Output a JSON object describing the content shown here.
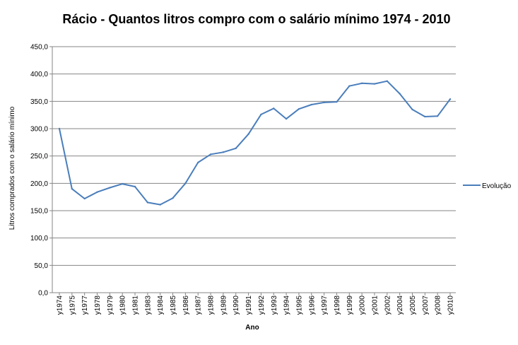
{
  "chart_data": {
    "type": "line",
    "title": "Rácio - Quantos litros compro com o salário mínimo 1974 - 2010",
    "xlabel": "Ano",
    "ylabel": "Litros comprados com o salário mínimo",
    "ylim": [
      0,
      450
    ],
    "y_ticks": [
      "0,0",
      "50,0",
      "100,0",
      "150,0",
      "200,0",
      "250,0",
      "300,0",
      "350,0",
      "400,0",
      "450,0"
    ],
    "grid": "horizontal",
    "legend_position": "right",
    "line_color": "#4a7ebb",
    "categories": [
      "y1974",
      "y1975",
      "y1977",
      "y1978",
      "y1979",
      "y1980",
      "y1981",
      "y1983",
      "y1984",
      "y1985",
      "y1986",
      "y1987",
      "y1988",
      "y1989",
      "y1990",
      "y1991",
      "y1992",
      "y1993",
      "y1994",
      "y1995",
      "y1996",
      "y1997",
      "y1998",
      "y1999",
      "y2000",
      "y2001",
      "y2002",
      "y2004",
      "y2005",
      "y2007",
      "y2008",
      "y2010"
    ],
    "series": [
      {
        "name": "Evolução",
        "values": [
          300,
          190,
          172,
          184,
          192,
          199,
          194,
          165,
          161,
          173,
          200,
          238,
          253,
          257,
          264,
          290,
          326,
          337,
          318,
          336,
          344,
          348,
          349,
          378,
          383,
          382,
          387,
          364,
          335,
          322,
          323,
          354
        ]
      }
    ]
  }
}
